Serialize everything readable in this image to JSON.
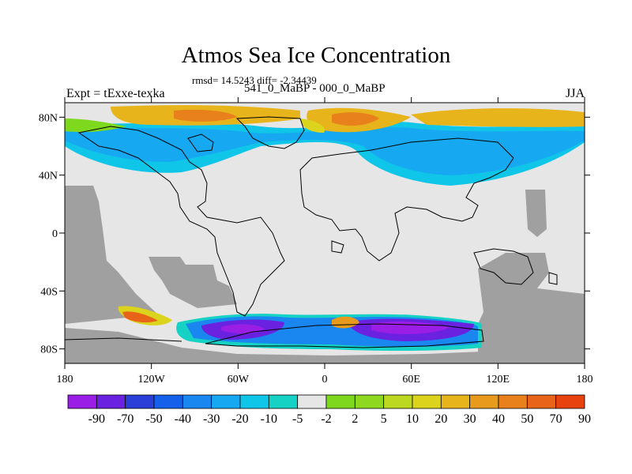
{
  "title": "Atmos Sea Ice Concentration",
  "stats_line": "rmsd= 14.5243 diff= -2.34439",
  "subtitle": "541_0_MaBP - 000_0_MaBP",
  "left_label": "Expt = tExxe-texka",
  "right_label": "JJA",
  "map": {
    "projection": "cylindrical-equidistant",
    "lon_range": [
      -180,
      180
    ],
    "lat_range": [
      -90,
      90
    ],
    "missing_color": "#a0a0a0",
    "neutral_color": "#e6e6e6",
    "lat_ticks": [
      {
        "value": 80,
        "label": "80N"
      },
      {
        "value": 40,
        "label": "40N"
      },
      {
        "value": 0,
        "label": "0"
      },
      {
        "value": -40,
        "label": "40S"
      },
      {
        "value": -80,
        "label": "80S"
      }
    ],
    "lon_ticks": [
      {
        "value": -180,
        "label": "180"
      },
      {
        "value": -120,
        "label": "120W"
      },
      {
        "value": -60,
        "label": "60W"
      },
      {
        "value": 0,
        "label": "0"
      },
      {
        "value": 60,
        "label": "60E"
      },
      {
        "value": 120,
        "label": "120E"
      },
      {
        "value": 180,
        "label": "180"
      }
    ]
  },
  "colorbar": {
    "labels": [
      "-90",
      "-70",
      "-50",
      "-40",
      "-30",
      "-20",
      "-10",
      "-5",
      "-2",
      "2",
      "5",
      "10",
      "20",
      "30",
      "40",
      "50",
      "70",
      "90"
    ],
    "colors": [
      "#9a1ee6",
      "#6a22e0",
      "#2a3ed8",
      "#1560ea",
      "#1a86f0",
      "#17a8f2",
      "#10c6e8",
      "#16d2c4",
      "#e6e6e6",
      "#7ed81e",
      "#8ed820",
      "#bcd820",
      "#dcd41c",
      "#e8b41c",
      "#e89a1c",
      "#e8801c",
      "#e86418",
      "#e8420f"
    ]
  }
}
